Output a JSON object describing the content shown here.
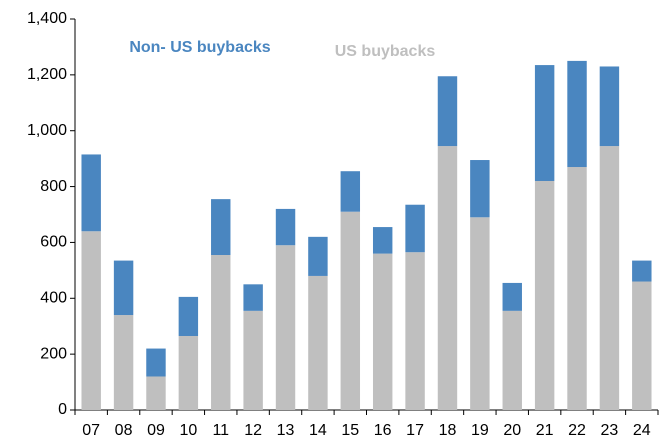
{
  "chart_data": {
    "type": "stacked_bar",
    "categories": [
      "07",
      "08",
      "09",
      "10",
      "11",
      "12",
      "13",
      "14",
      "15",
      "16",
      "17",
      "18",
      "19",
      "20",
      "21",
      "22",
      "23",
      "24"
    ],
    "series": [
      {
        "name": "US buybacks",
        "color": "#bfbfbf",
        "values": [
          640,
          340,
          120,
          265,
          555,
          355,
          590,
          480,
          710,
          560,
          565,
          945,
          690,
          355,
          820,
          870,
          945,
          460
        ]
      },
      {
        "name": "Non- US buybacks",
        "color": "#4a86c0",
        "values": [
          275,
          195,
          100,
          140,
          200,
          95,
          130,
          140,
          145,
          95,
          170,
          250,
          205,
          100,
          415,
          380,
          285,
          75
        ]
      }
    ],
    "ylim": [
      0,
      1400
    ],
    "yticks": [
      0,
      200,
      400,
      600,
      800,
      {
        "value": 1000,
        "label": "1,000"
      },
      {
        "value": 1200,
        "label": "1,200"
      },
      {
        "value": 1400,
        "label": "1,400"
      }
    ]
  }
}
